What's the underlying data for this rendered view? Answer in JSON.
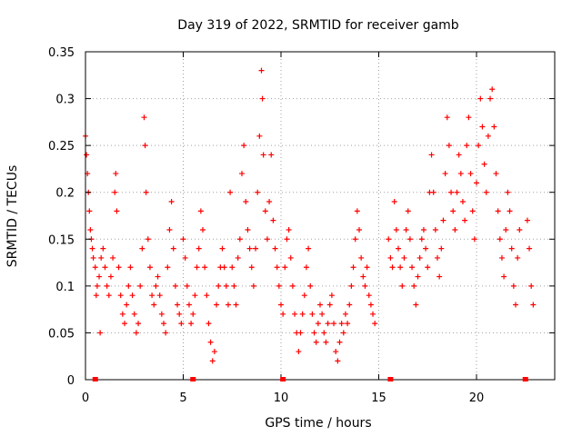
{
  "chart_data": {
    "type": "scatter",
    "title": "Day 319 of 2022, SRMTID for receiver gamb",
    "xlabel": "GPS time / hours",
    "ylabel": "SRMTID / TECUs",
    "xlim": [
      0,
      24
    ],
    "ylim": [
      0,
      0.35
    ],
    "xticks": [
      0,
      5,
      10,
      15,
      20
    ],
    "yticks": [
      0,
      0.05,
      0.1,
      0.15,
      0.2,
      0.25,
      0.3,
      0.35
    ],
    "xtick_labels": [
      "0",
      "5",
      "10",
      "15",
      "20"
    ],
    "ytick_labels": [
      "0",
      "0.05",
      "0.1",
      "0.15",
      "0.2",
      "0.25",
      "0.3",
      "0.35"
    ],
    "grid": true,
    "marker": "+",
    "color": "#ff0000",
    "series": [
      {
        "name": "SRMTID",
        "points": [
          [
            0.0,
            0.26
          ],
          [
            0.05,
            0.24
          ],
          [
            0.1,
            0.22
          ],
          [
            0.15,
            0.2
          ],
          [
            0.2,
            0.18
          ],
          [
            0.25,
            0.16
          ],
          [
            0.3,
            0.15
          ],
          [
            0.35,
            0.14
          ],
          [
            0.4,
            0.13
          ],
          [
            0.5,
            0.12
          ],
          [
            0.55,
            0.09
          ],
          [
            0.6,
            0.1
          ],
          [
            0.7,
            0.11
          ],
          [
            0.75,
            0.05
          ],
          [
            0.8,
            0.13
          ],
          [
            0.9,
            0.14
          ],
          [
            1.0,
            0.12
          ],
          [
            1.1,
            0.1
          ],
          [
            1.2,
            0.09
          ],
          [
            1.3,
            0.11
          ],
          [
            1.4,
            0.13
          ],
          [
            1.5,
            0.2
          ],
          [
            1.55,
            0.22
          ],
          [
            1.6,
            0.18
          ],
          [
            1.7,
            0.12
          ],
          [
            1.8,
            0.09
          ],
          [
            1.9,
            0.07
          ],
          [
            2.0,
            0.06
          ],
          [
            2.1,
            0.08
          ],
          [
            2.2,
            0.1
          ],
          [
            2.3,
            0.12
          ],
          [
            2.4,
            0.09
          ],
          [
            2.5,
            0.07
          ],
          [
            2.6,
            0.05
          ],
          [
            2.7,
            0.06
          ],
          [
            2.8,
            0.1
          ],
          [
            2.9,
            0.14
          ],
          [
            3.0,
            0.28
          ],
          [
            3.05,
            0.25
          ],
          [
            3.1,
            0.2
          ],
          [
            3.2,
            0.15
          ],
          [
            3.3,
            0.12
          ],
          [
            3.4,
            0.09
          ],
          [
            3.5,
            0.08
          ],
          [
            3.6,
            0.1
          ],
          [
            3.7,
            0.11
          ],
          [
            3.8,
            0.09
          ],
          [
            3.9,
            0.07
          ],
          [
            4.0,
            0.06
          ],
          [
            4.1,
            0.05
          ],
          [
            4.2,
            0.12
          ],
          [
            4.3,
            0.16
          ],
          [
            4.4,
            0.19
          ],
          [
            4.5,
            0.14
          ],
          [
            4.6,
            0.1
          ],
          [
            4.7,
            0.08
          ],
          [
            4.8,
            0.07
          ],
          [
            4.9,
            0.06
          ],
          [
            5.0,
            0.15
          ],
          [
            5.1,
            0.13
          ],
          [
            5.2,
            0.1
          ],
          [
            5.3,
            0.08
          ],
          [
            5.4,
            0.06
          ],
          [
            5.5,
            0.07
          ],
          [
            5.6,
            0.09
          ],
          [
            5.7,
            0.12
          ],
          [
            5.8,
            0.14
          ],
          [
            5.9,
            0.18
          ],
          [
            6.0,
            0.16
          ],
          [
            6.1,
            0.12
          ],
          [
            6.2,
            0.09
          ],
          [
            6.3,
            0.06
          ],
          [
            6.4,
            0.04
          ],
          [
            6.5,
            0.02
          ],
          [
            6.6,
            0.03
          ],
          [
            6.7,
            0.08
          ],
          [
            6.8,
            0.1
          ],
          [
            6.9,
            0.12
          ],
          [
            7.0,
            0.14
          ],
          [
            7.1,
            0.12
          ],
          [
            7.2,
            0.1
          ],
          [
            7.3,
            0.08
          ],
          [
            7.4,
            0.2
          ],
          [
            7.5,
            0.12
          ],
          [
            7.6,
            0.1
          ],
          [
            7.7,
            0.08
          ],
          [
            7.8,
            0.13
          ],
          [
            7.9,
            0.15
          ],
          [
            8.0,
            0.22
          ],
          [
            8.1,
            0.25
          ],
          [
            8.2,
            0.19
          ],
          [
            8.3,
            0.16
          ],
          [
            8.4,
            0.14
          ],
          [
            8.5,
            0.12
          ],
          [
            8.6,
            0.1
          ],
          [
            8.7,
            0.14
          ],
          [
            8.8,
            0.2
          ],
          [
            8.9,
            0.26
          ],
          [
            9.0,
            0.33
          ],
          [
            9.05,
            0.3
          ],
          [
            9.1,
            0.24
          ],
          [
            9.2,
            0.18
          ],
          [
            9.3,
            0.15
          ],
          [
            9.4,
            0.19
          ],
          [
            9.5,
            0.24
          ],
          [
            9.6,
            0.17
          ],
          [
            9.7,
            0.14
          ],
          [
            9.8,
            0.12
          ],
          [
            9.9,
            0.1
          ],
          [
            10.0,
            0.08
          ],
          [
            10.1,
            0.07
          ],
          [
            10.2,
            0.12
          ],
          [
            10.3,
            0.15
          ],
          [
            10.4,
            0.16
          ],
          [
            10.5,
            0.13
          ],
          [
            10.6,
            0.1
          ],
          [
            10.7,
            0.07
          ],
          [
            10.8,
            0.05
          ],
          [
            10.9,
            0.03
          ],
          [
            11.0,
            0.05
          ],
          [
            11.1,
            0.07
          ],
          [
            11.2,
            0.09
          ],
          [
            11.3,
            0.12
          ],
          [
            11.4,
            0.14
          ],
          [
            11.5,
            0.1
          ],
          [
            11.6,
            0.07
          ],
          [
            11.7,
            0.05
          ],
          [
            11.8,
            0.04
          ],
          [
            11.9,
            0.06
          ],
          [
            12.0,
            0.08
          ],
          [
            12.1,
            0.07
          ],
          [
            12.2,
            0.05
          ],
          [
            12.3,
            0.04
          ],
          [
            12.4,
            0.06
          ],
          [
            12.5,
            0.08
          ],
          [
            12.6,
            0.09
          ],
          [
            12.7,
            0.06
          ],
          [
            12.8,
            0.03
          ],
          [
            12.9,
            0.02
          ],
          [
            13.0,
            0.04
          ],
          [
            13.1,
            0.06
          ],
          [
            13.2,
            0.05
          ],
          [
            13.3,
            0.07
          ],
          [
            13.4,
            0.06
          ],
          [
            13.5,
            0.08
          ],
          [
            13.6,
            0.1
          ],
          [
            13.7,
            0.12
          ],
          [
            13.8,
            0.15
          ],
          [
            13.9,
            0.18
          ],
          [
            14.0,
            0.16
          ],
          [
            14.1,
            0.13
          ],
          [
            14.2,
            0.11
          ],
          [
            14.3,
            0.1
          ],
          [
            14.4,
            0.12
          ],
          [
            14.5,
            0.09
          ],
          [
            14.6,
            0.08
          ],
          [
            14.7,
            0.07
          ],
          [
            14.8,
            0.06
          ],
          [
            15.5,
            0.15
          ],
          [
            15.6,
            0.13
          ],
          [
            15.7,
            0.12
          ],
          [
            15.8,
            0.19
          ],
          [
            15.9,
            0.16
          ],
          [
            16.0,
            0.14
          ],
          [
            16.1,
            0.12
          ],
          [
            16.2,
            0.1
          ],
          [
            16.3,
            0.13
          ],
          [
            16.4,
            0.16
          ],
          [
            16.5,
            0.18
          ],
          [
            16.6,
            0.15
          ],
          [
            16.7,
            0.12
          ],
          [
            16.8,
            0.1
          ],
          [
            16.9,
            0.08
          ],
          [
            17.0,
            0.11
          ],
          [
            17.1,
            0.13
          ],
          [
            17.2,
            0.15
          ],
          [
            17.3,
            0.16
          ],
          [
            17.4,
            0.14
          ],
          [
            17.5,
            0.12
          ],
          [
            17.6,
            0.2
          ],
          [
            17.7,
            0.24
          ],
          [
            17.8,
            0.2
          ],
          [
            17.9,
            0.16
          ],
          [
            18.0,
            0.13
          ],
          [
            18.1,
            0.11
          ],
          [
            18.2,
            0.14
          ],
          [
            18.3,
            0.17
          ],
          [
            18.4,
            0.22
          ],
          [
            18.5,
            0.28
          ],
          [
            18.6,
            0.25
          ],
          [
            18.7,
            0.2
          ],
          [
            18.8,
            0.18
          ],
          [
            18.9,
            0.16
          ],
          [
            19.0,
            0.2
          ],
          [
            19.1,
            0.24
          ],
          [
            19.2,
            0.22
          ],
          [
            19.3,
            0.19
          ],
          [
            19.4,
            0.17
          ],
          [
            19.5,
            0.25
          ],
          [
            19.6,
            0.28
          ],
          [
            19.7,
            0.22
          ],
          [
            19.8,
            0.18
          ],
          [
            19.9,
            0.15
          ],
          [
            20.0,
            0.21
          ],
          [
            20.1,
            0.25
          ],
          [
            20.2,
            0.3
          ],
          [
            20.3,
            0.27
          ],
          [
            20.4,
            0.23
          ],
          [
            20.5,
            0.2
          ],
          [
            20.6,
            0.26
          ],
          [
            20.7,
            0.3
          ],
          [
            20.8,
            0.31
          ],
          [
            20.9,
            0.27
          ],
          [
            21.0,
            0.22
          ],
          [
            21.1,
            0.18
          ],
          [
            21.2,
            0.15
          ],
          [
            21.3,
            0.13
          ],
          [
            21.4,
            0.11
          ],
          [
            21.5,
            0.16
          ],
          [
            21.6,
            0.2
          ],
          [
            21.7,
            0.18
          ],
          [
            21.8,
            0.14
          ],
          [
            21.9,
            0.1
          ],
          [
            22.0,
            0.08
          ],
          [
            22.1,
            0.13
          ],
          [
            22.2,
            0.16
          ],
          [
            22.6,
            0.17
          ],
          [
            22.7,
            0.14
          ],
          [
            22.8,
            0.1
          ],
          [
            22.9,
            0.08
          ]
        ]
      }
    ],
    "gap_markers_x": [
      0.5,
      5.5,
      10.1,
      15.6,
      22.5
    ]
  }
}
